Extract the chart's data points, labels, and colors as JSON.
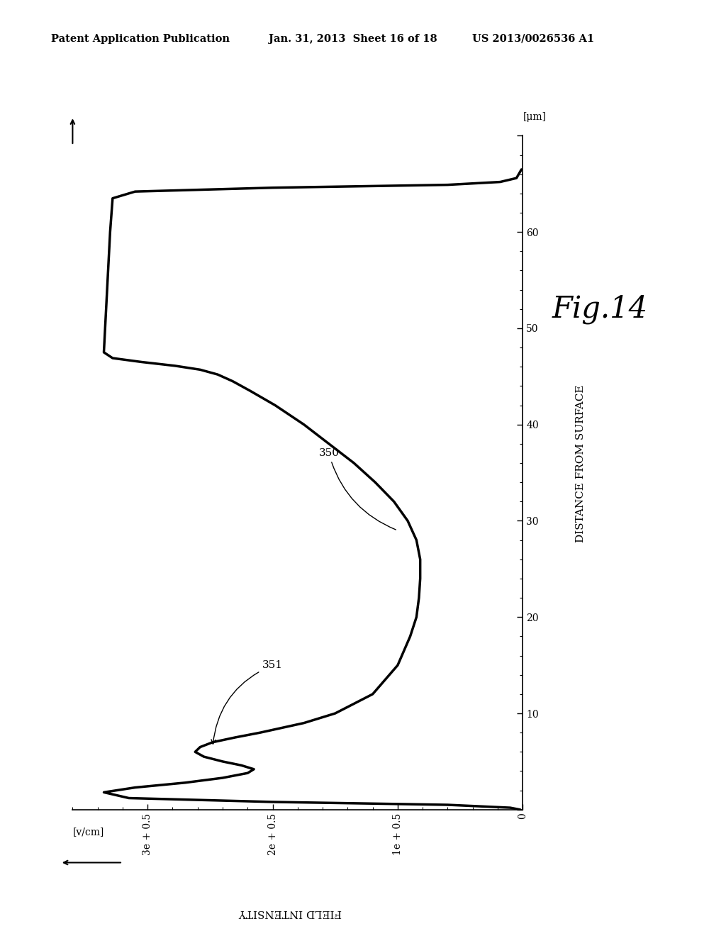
{
  "header_left": "Patent Application Publication",
  "header_center": "Jan. 31, 2013  Sheet 16 of 18",
  "header_right": "US 2013/0026536 A1",
  "fig_label": "Fig.14",
  "ylabel_text": "DISTANCE FROM SURFACE",
  "yunit": "[μm]",
  "xlabel_text": "FIELD INTENSITY",
  "xunit": "[v/cm]",
  "xtick_labels": [
    "0",
    "1e + 0.5",
    "2e + 0.5",
    "3e + 0.5"
  ],
  "xtick_vals": [
    0,
    100000,
    200000,
    300000
  ],
  "ytick_vals": [
    0,
    10,
    20,
    30,
    40,
    50,
    60,
    70
  ],
  "ytick_labels": [
    "",
    "10",
    "20",
    "30",
    "40",
    "50",
    "60",
    ""
  ],
  "annotation_350": "350",
  "annotation_351": "351",
  "xlim": [
    0,
    360000
  ],
  "ylim": [
    0,
    70
  ],
  "background_color": "#ffffff",
  "line_color": "#000000",
  "line_width": 2.5,
  "dist": [
    0.0,
    0.2,
    0.5,
    0.8,
    1.2,
    1.8,
    2.3,
    2.8,
    3.3,
    3.8,
    4.2,
    4.6,
    5.0,
    5.5,
    6.0,
    6.5,
    7.0,
    7.5,
    8.0,
    9.0,
    10.0,
    12.0,
    15.0,
    18.0,
    20.0,
    22.0,
    24.0,
    26.0,
    28.0,
    30.0,
    32.0,
    34.0,
    36.0,
    38.0,
    40.0,
    42.0,
    43.5,
    44.5,
    45.2,
    45.7,
    46.1,
    46.5,
    46.9,
    47.5,
    50.0,
    55.0,
    60.0,
    63.5,
    64.2,
    64.6,
    64.9,
    65.2,
    65.6,
    66.5
  ],
  "field": [
    2000,
    10000,
    60000,
    200000,
    315000,
    335000,
    310000,
    270000,
    240000,
    220000,
    215000,
    225000,
    240000,
    255000,
    262000,
    258000,
    248000,
    230000,
    210000,
    175000,
    150000,
    120000,
    100000,
    90000,
    85000,
    83000,
    82000,
    82000,
    85000,
    92000,
    103000,
    118000,
    135000,
    155000,
    175000,
    198000,
    218000,
    232000,
    244000,
    258000,
    278000,
    305000,
    328000,
    335000,
    334000,
    332000,
    330000,
    328000,
    310000,
    200000,
    60000,
    18000,
    5000,
    1000
  ]
}
